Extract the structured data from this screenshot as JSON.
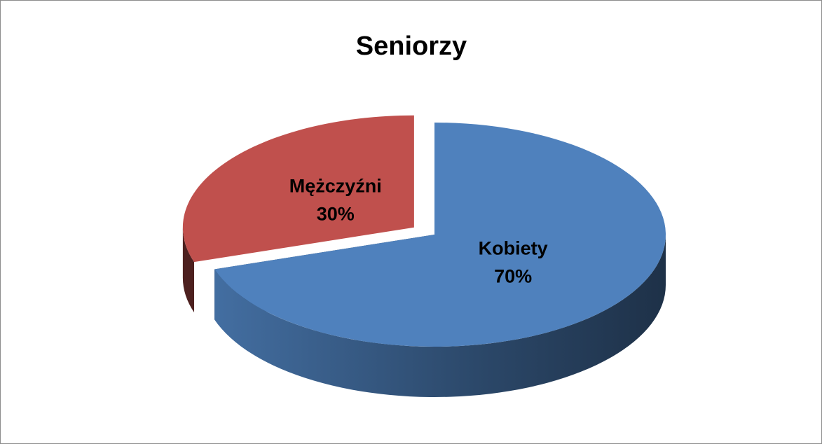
{
  "chart_data": {
    "type": "pie",
    "title": "Seniorzy",
    "categories": [
      "Kobiety",
      "Mężczyźni"
    ],
    "values": [
      70,
      30
    ],
    "value_labels": [
      "70%",
      "30%"
    ],
    "colors": [
      "#4f81bd",
      "#c0504d"
    ],
    "exploded": [
      false,
      true
    ]
  }
}
